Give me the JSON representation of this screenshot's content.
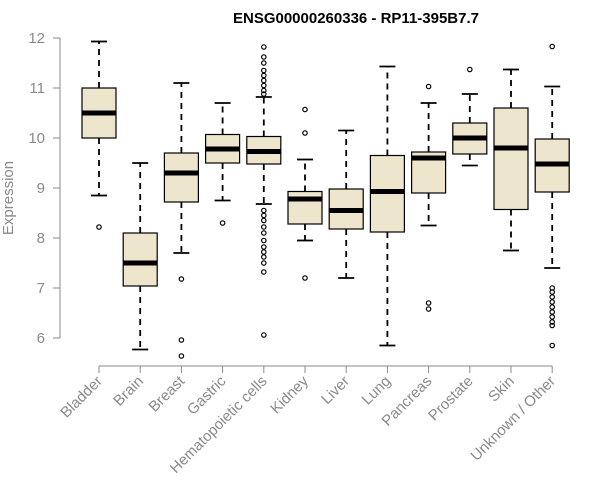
{
  "chart_data": {
    "type": "boxplot",
    "title": "ENSG00000260336 - RP11-395B7.7",
    "xlabel": "",
    "ylabel": "Expression",
    "ylim": [
      5.6,
      12.1
    ],
    "yticks": [
      6,
      7,
      8,
      9,
      10,
      11,
      12
    ],
    "colors": {
      "box_fill": "#ede6cc",
      "stroke": "#000000",
      "axis": "#8a8a8a"
    },
    "categories": [
      "Bladder",
      "Brain",
      "Breast",
      "Gastric",
      "Hematopoietic cells",
      "Kidney",
      "Liver",
      "Lung",
      "Pancreas",
      "Prostate",
      "Skin",
      "Unknown / Other"
    ],
    "boxes": [
      {
        "name": "Bladder",
        "min": 8.85,
        "q1": 10.0,
        "median": 10.5,
        "q3": 11.0,
        "max": 11.93,
        "outliers": [
          8.22
        ]
      },
      {
        "name": "Brain",
        "min": 5.77,
        "q1": 7.04,
        "median": 7.5,
        "q3": 8.1,
        "max": 9.5,
        "outliers": []
      },
      {
        "name": "Breast",
        "min": 7.7,
        "q1": 8.72,
        "median": 9.3,
        "q3": 9.7,
        "max": 11.1,
        "outliers": [
          7.18,
          5.96,
          5.64
        ]
      },
      {
        "name": "Gastric",
        "min": 8.75,
        "q1": 9.5,
        "median": 9.78,
        "q3": 10.07,
        "max": 10.7,
        "outliers": [
          8.3
        ]
      },
      {
        "name": "Hematopoietic cells",
        "min": 8.68,
        "q1": 9.48,
        "median": 9.73,
        "q3": 10.03,
        "max": 10.82,
        "outliers": [
          11.82,
          11.62,
          11.5,
          11.35,
          11.25,
          11.15,
          11.05,
          10.95,
          10.88,
          8.55,
          8.45,
          8.35,
          8.22,
          8.1,
          7.95,
          7.82,
          7.72,
          7.62,
          7.5,
          7.32,
          6.06
        ]
      },
      {
        "name": "Kidney",
        "min": 7.95,
        "q1": 8.28,
        "median": 8.78,
        "q3": 8.93,
        "max": 9.57,
        "outliers": [
          10.57,
          10.1,
          7.2
        ]
      },
      {
        "name": "Liver",
        "min": 7.2,
        "q1": 8.18,
        "median": 8.55,
        "q3": 8.98,
        "max": 10.15,
        "outliers": []
      },
      {
        "name": "Lung",
        "min": 5.85,
        "q1": 8.12,
        "median": 8.93,
        "q3": 9.65,
        "max": 11.43,
        "outliers": []
      },
      {
        "name": "Pancreas",
        "min": 8.25,
        "q1": 8.9,
        "median": 9.6,
        "q3": 9.72,
        "max": 10.7,
        "outliers": [
          11.03,
          6.7,
          6.58
        ]
      },
      {
        "name": "Prostate",
        "min": 9.45,
        "q1": 9.68,
        "median": 10.0,
        "q3": 10.3,
        "max": 10.88,
        "outliers": [
          11.37
        ]
      },
      {
        "name": "Skin",
        "min": 7.75,
        "q1": 8.57,
        "median": 9.8,
        "q3": 10.6,
        "max": 11.37,
        "outliers": []
      },
      {
        "name": "Unknown / Other",
        "min": 7.4,
        "q1": 8.92,
        "median": 9.48,
        "q3": 9.98,
        "max": 11.03,
        "outliers": [
          11.83,
          7.0,
          6.92,
          6.82,
          6.72,
          6.62,
          6.52,
          6.42,
          6.32,
          6.25,
          5.85
        ]
      }
    ]
  }
}
